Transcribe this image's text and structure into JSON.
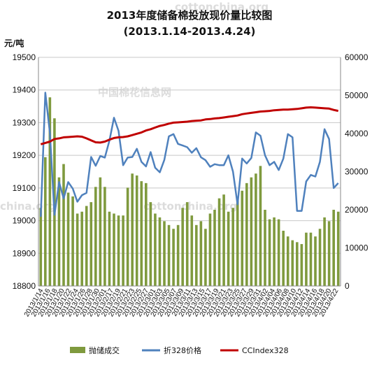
{
  "chart_data": {
    "type": "bar",
    "title": "2013年度储备棉投放现价量比较图",
    "subtitle": "(2013.1.14-2013.4.24)",
    "y_left_label": "元/吨",
    "y_left_lim": [
      18800,
      19500
    ],
    "y_left_ticks": [
      "19500",
      "19400",
      "19300",
      "19200",
      "19100",
      "19000",
      "18900",
      "18800"
    ],
    "y_right_lim": [
      0,
      60000
    ],
    "y_right_ticks": [
      "60000",
      "50000",
      "40000",
      "30000",
      "20000",
      "10000",
      "0"
    ],
    "grid": true,
    "legend_position": "bottom",
    "x_tick_labels": [
      "2013/1/14",
      "2013/1/16",
      "2013/1/18",
      "2013/1/20",
      "2013/1/22",
      "2013/1/24",
      "2013/1/26",
      "2013/1/28",
      "2013/1/30",
      "2013/2/01",
      "2013/2/17",
      "2013/2/19",
      "2013/2/21",
      "2013/2/23",
      "2013/2/25",
      "2013/2/27",
      "2013/3/01",
      "2013/3/03",
      "2013/3/05",
      "2013/3/07",
      "2013/3/09",
      "2013/3/11",
      "2013/3/13",
      "2013/3/15",
      "2013/3/17",
      "2013/3/19",
      "2013/3/21",
      "2013/3/23",
      "2013/3/25",
      "2013/3/27",
      "2013/3/29",
      "2013/3/31",
      "2013/4/02",
      "2013/4/04",
      "2013/4/06",
      "2013/4/08",
      "2013/4/10",
      "2013/4/12",
      "2013/4/14",
      "2013/4/16",
      "2013/4/18",
      "2013/4/20",
      "2013/4/22"
    ],
    "series": [
      {
        "name": "抛储成交",
        "axis": "right",
        "type": "bar",
        "color": "#7f9a3e",
        "values": [
          20500,
          33800,
          49500,
          44000,
          28500,
          32000,
          24500,
          23500,
          19000,
          19500,
          21000,
          22000,
          26000,
          28500,
          26000,
          19500,
          19000,
          18500,
          18500,
          25800,
          29500,
          29000,
          27500,
          27000,
          22000,
          19000,
          18000,
          17000,
          16000,
          15000,
          16000,
          20500,
          22000,
          18500,
          16000,
          17000,
          15000,
          19000,
          20000,
          23000,
          24000,
          19500,
          20500,
          22500,
          25000,
          27000,
          28500,
          29500,
          31500,
          20000,
          17500,
          18000,
          17500,
          14500,
          13000,
          12000,
          11500,
          11000,
          14000,
          14000,
          13000,
          15000,
          18000,
          17000,
          20000,
          19500
        ]
      },
      {
        "name": "折328价格",
        "axis": "left",
        "type": "line",
        "color": "#4f81bd",
        "values": [
          19012,
          19392,
          19268,
          19018,
          19118,
          19068,
          19118,
          19098,
          19058,
          19078,
          19085,
          19195,
          19168,
          19198,
          19193,
          19245,
          19315,
          19275,
          19170,
          19193,
          19195,
          19220,
          19180,
          19166,
          19210,
          19162,
          19148,
          19186,
          19258,
          19265,
          19235,
          19230,
          19225,
          19208,
          19222,
          19194,
          19185,
          19165,
          19173,
          19170,
          19170,
          19200,
          19150,
          19050,
          19190,
          19175,
          19192,
          19270,
          19260,
          19200,
          19170,
          19180,
          19155,
          19190,
          19265,
          19255,
          19030,
          19030,
          19120,
          19140,
          19135,
          19180,
          19280,
          19250,
          19100,
          19115
        ]
      },
      {
        "name": "CCIndex328",
        "axis": "left",
        "type": "line",
        "color": "#c00000",
        "values": [
          19234,
          19238,
          19242,
          19250,
          19252,
          19255,
          19256,
          19257,
          19258,
          19257,
          19252,
          19246,
          19240,
          19239,
          19242,
          19248,
          19253,
          19255,
          19256,
          19258,
          19262,
          19266,
          19270,
          19276,
          19280,
          19285,
          19290,
          19293,
          19297,
          19300,
          19301,
          19302,
          19303,
          19305,
          19306,
          19307,
          19310,
          19311,
          19313,
          19314,
          19316,
          19318,
          19320,
          19322,
          19326,
          19328,
          19330,
          19332,
          19334,
          19335,
          19336,
          19338,
          19339,
          19340,
          19340,
          19341,
          19342,
          19344,
          19346,
          19347,
          19346,
          19345,
          19344,
          19343,
          19339,
          19336
        ]
      }
    ]
  },
  "watermarks": [
    "cottonchina.org",
    "中国棉花信息网",
    "china.org"
  ]
}
